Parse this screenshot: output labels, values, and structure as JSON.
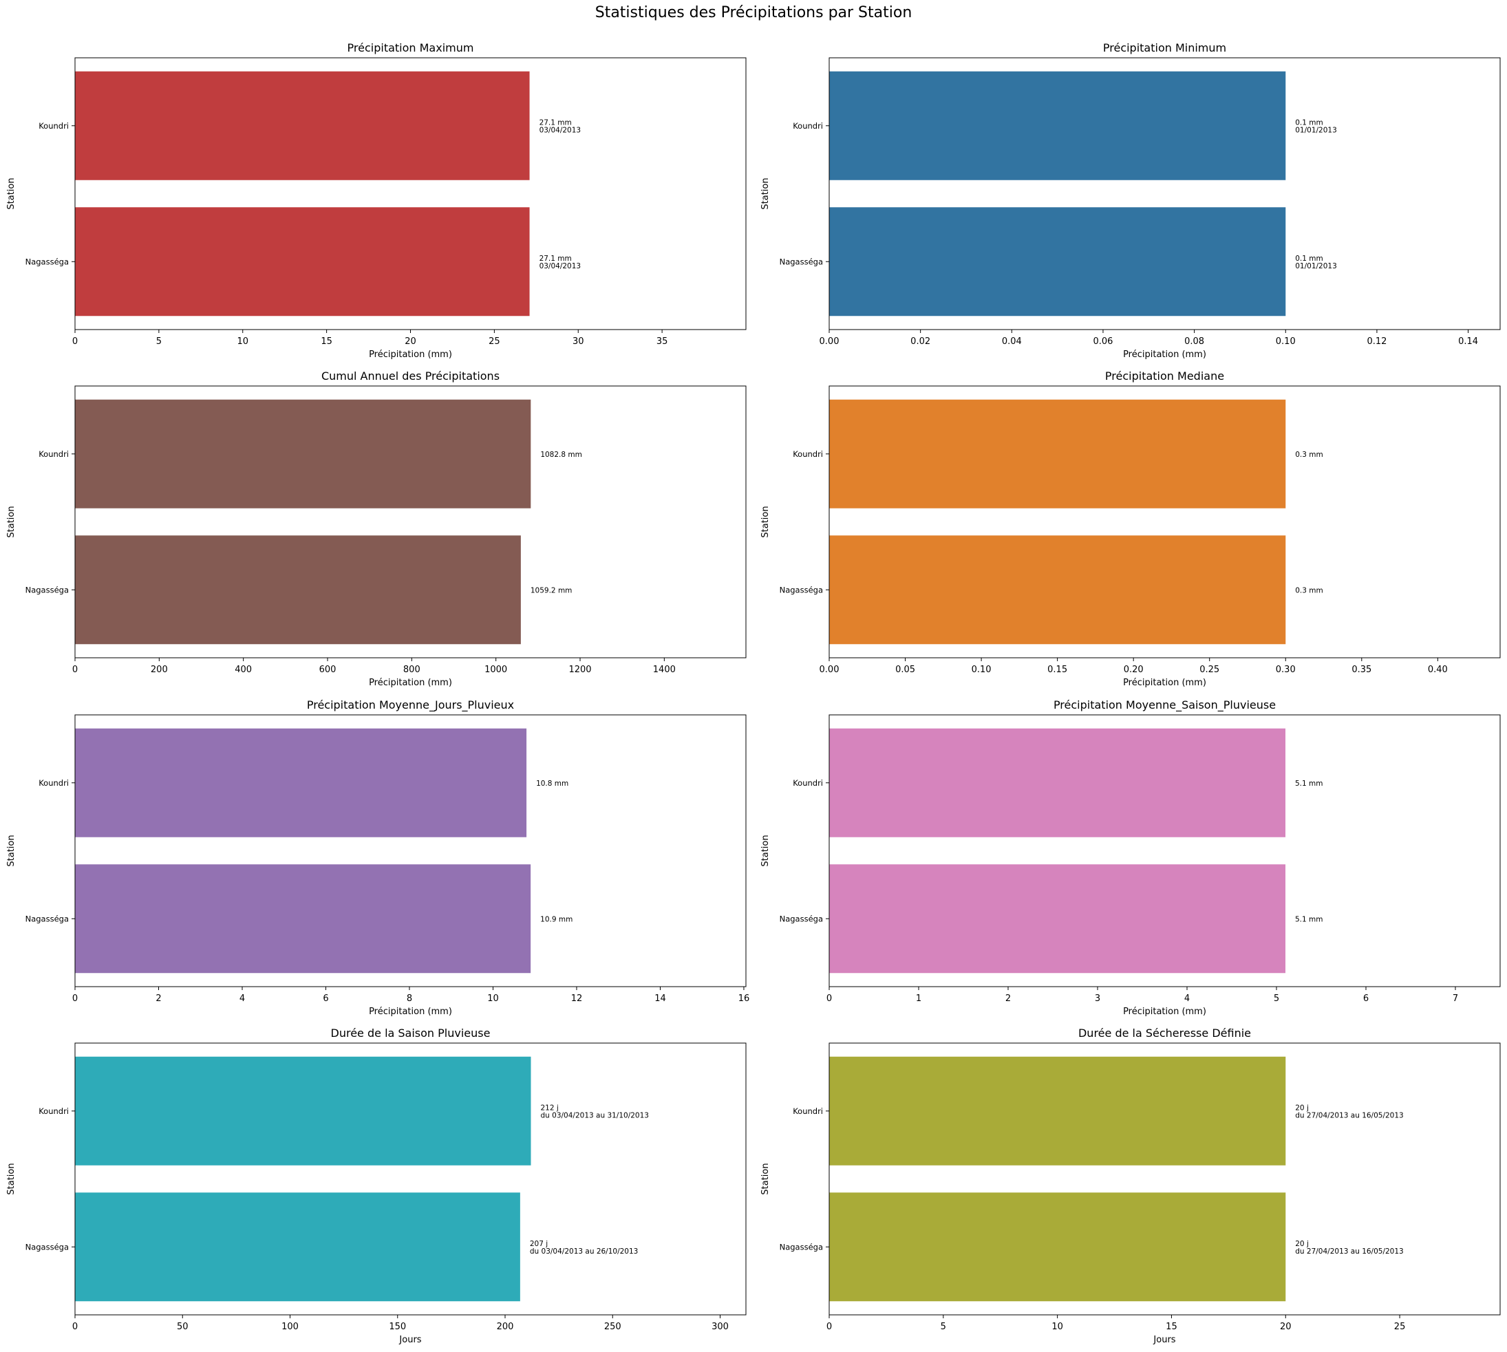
{
  "figure_title": "Statistiques des Précipitations par Station",
  "chart_data": [
    {
      "type": "bar",
      "orientation": "horizontal",
      "title": "Précipitation Maximum",
      "xlabel": "Précipitation (mm)",
      "ylabel": "Station",
      "categories": [
        "Koundri",
        "Nagasséga"
      ],
      "values": [
        27.1,
        27.1
      ],
      "data_labels": [
        [
          "27.1 mm",
          "03/04/2013"
        ],
        [
          "27.1 mm",
          "03/04/2013"
        ]
      ],
      "xlim": [
        0,
        40
      ],
      "xticks": [
        "0",
        "5",
        "10",
        "15",
        "20",
        "25",
        "30",
        "35"
      ],
      "xtick_values": [
        0,
        5,
        10,
        15,
        20,
        25,
        30,
        35
      ],
      "color": "#c03d3e"
    },
    {
      "type": "bar",
      "orientation": "horizontal",
      "title": "Précipitation Minimum",
      "xlabel": "Précipitation (mm)",
      "ylabel": "Station",
      "categories": [
        "Koundri",
        "Nagasséga"
      ],
      "values": [
        0.1,
        0.1
      ],
      "data_labels": [
        [
          "0.1 mm",
          "01/01/2013"
        ],
        [
          "0.1 mm",
          "01/01/2013"
        ]
      ],
      "xlim": [
        0,
        0.147
      ],
      "xticks": [
        "0.00",
        "0.02",
        "0.04",
        "0.06",
        "0.08",
        "0.10",
        "0.12",
        "0.14"
      ],
      "xtick_values": [
        0,
        0.02,
        0.04,
        0.06,
        0.08,
        0.1,
        0.12,
        0.14
      ],
      "color": "#3274a1"
    },
    {
      "type": "bar",
      "orientation": "horizontal",
      "title": "Cumul Annuel des Précipitations",
      "xlabel": "Précipitation (mm)",
      "ylabel": "Station",
      "categories": [
        "Koundri",
        "Nagasséga"
      ],
      "values": [
        1082.8,
        1059.2
      ],
      "data_labels": [
        [
          "1082.8 mm"
        ],
        [
          "1059.2 mm"
        ]
      ],
      "xlim": [
        0,
        1594
      ],
      "xticks": [
        "0",
        "200",
        "400",
        "600",
        "800",
        "1000",
        "1200",
        "1400"
      ],
      "xtick_values": [
        0,
        200,
        400,
        600,
        800,
        1000,
        1200,
        1400
      ],
      "color": "#845b53"
    },
    {
      "type": "bar",
      "orientation": "horizontal",
      "title": "Précipitation Mediane",
      "xlabel": "Précipitation (mm)",
      "ylabel": "Station",
      "categories": [
        "Koundri",
        "Nagasséga"
      ],
      "values": [
        0.3,
        0.3
      ],
      "data_labels": [
        [
          "0.3 mm"
        ],
        [
          "0.3 mm"
        ]
      ],
      "xlim": [
        0,
        0.441
      ],
      "xticks": [
        "0.00",
        "0.05",
        "0.10",
        "0.15",
        "0.20",
        "0.25",
        "0.30",
        "0.35",
        "0.40"
      ],
      "xtick_values": [
        0,
        0.05,
        0.1,
        0.15,
        0.2,
        0.25,
        0.3,
        0.35,
        0.4
      ],
      "color": "#e1812c"
    },
    {
      "type": "bar",
      "orientation": "horizontal",
      "title": "Précipitation Moyenne_Jours_Pluvieux",
      "xlabel": "Précipitation (mm)",
      "ylabel": "Station",
      "categories": [
        "Koundri",
        "Nagasséga"
      ],
      "values": [
        10.8,
        10.9
      ],
      "data_labels": [
        [
          "10.8 mm"
        ],
        [
          "10.9 mm"
        ]
      ],
      "xlim": [
        0,
        16.05
      ],
      "xticks": [
        "0",
        "2",
        "4",
        "6",
        "8",
        "10",
        "12",
        "14",
        "16"
      ],
      "xtick_values": [
        0,
        2,
        4,
        6,
        8,
        10,
        12,
        14,
        16
      ],
      "color": "#9372b2"
    },
    {
      "type": "bar",
      "orientation": "horizontal",
      "title": "Précipitation Moyenne_Saison_Pluvieuse",
      "xlabel": "Précipitation (mm)",
      "ylabel": "Station",
      "categories": [
        "Koundri",
        "Nagasséga"
      ],
      "values": [
        5.1,
        5.1
      ],
      "data_labels": [
        [
          "5.1 mm"
        ],
        [
          "5.1 mm"
        ]
      ],
      "xlim": [
        0,
        7.5
      ],
      "xticks": [
        "0",
        "1",
        "2",
        "3",
        "4",
        "5",
        "6",
        "7"
      ],
      "xtick_values": [
        0,
        1,
        2,
        3,
        4,
        5,
        6,
        7
      ],
      "color": "#d684bd"
    },
    {
      "type": "bar",
      "orientation": "horizontal",
      "title": "Durée de la Saison Pluvieuse",
      "xlabel": "Jours",
      "ylabel": "Station",
      "categories": [
        "Koundri",
        "Nagasséga"
      ],
      "values": [
        212,
        207
      ],
      "data_labels": [
        [
          "212 j",
          "du 03/04/2013 au 31/10/2013"
        ],
        [
          "207 j",
          "du 03/04/2013 au 26/10/2013"
        ]
      ],
      "xlim": [
        0,
        312
      ],
      "xticks": [
        "0",
        "50",
        "100",
        "150",
        "200",
        "250",
        "300"
      ],
      "xtick_values": [
        0,
        50,
        100,
        150,
        200,
        250,
        300
      ],
      "color": "#2eabb8"
    },
    {
      "type": "bar",
      "orientation": "horizontal",
      "title": "Durée de la Sécheresse Définie",
      "xlabel": "Jours",
      "ylabel": "Station",
      "categories": [
        "Koundri",
        "Nagasséga"
      ],
      "values": [
        20,
        20
      ],
      "data_labels": [
        [
          "20 j",
          "du 27/04/2013 au 16/05/2013"
        ],
        [
          "20 j",
          "du 27/04/2013 au 16/05/2013"
        ]
      ],
      "xlim": [
        0,
        29.4
      ],
      "xticks": [
        "0",
        "5",
        "10",
        "15",
        "20",
        "25"
      ],
      "xtick_values": [
        0,
        5,
        10,
        15,
        20,
        25
      ],
      "color": "#a9ab38"
    }
  ]
}
